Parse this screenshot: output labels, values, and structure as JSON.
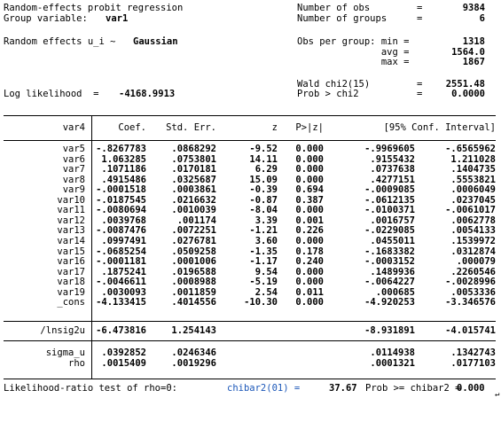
{
  "header": {
    "model_title": "Random-effects probit regression",
    "group_var_label": "Group variable:",
    "group_var": "var1",
    "re_label": "Random effects u_i ~",
    "re_dist": "Gaussian",
    "ll_label": "Log likelihood  =",
    "ll_value": "-4168.9913",
    "right": [
      {
        "label": "Number of obs",
        "eq": "=",
        "value": "9384",
        "bold": true
      },
      {
        "label": "Number of groups",
        "eq": "=",
        "value": "6",
        "bold": true
      },
      {
        "label": "",
        "eq": "",
        "value": "",
        "bold": false
      },
      {
        "label": "Obs per group: min =",
        "eq": "",
        "value": "1318",
        "bold": true
      },
      {
        "label": "               avg =",
        "eq": "",
        "value": "1564.0",
        "bold": true
      },
      {
        "label": "               max =",
        "eq": "",
        "value": "1867",
        "bold": true
      },
      {
        "label": "",
        "eq": "",
        "value": "",
        "bold": false
      },
      {
        "label": "Wald chi2(15)",
        "eq": "=",
        "value": "2551.48",
        "bold": true
      },
      {
        "label": "Prob > chi2",
        "eq": "=",
        "value": "0.0000",
        "bold": true
      }
    ]
  },
  "table": {
    "columns": [
      "var4",
      "Coef.",
      "Std. Err.",
      "z",
      "P>|z|",
      "[95% Conf. Interval]"
    ],
    "rows": [
      {
        "name": "var5",
        "coef": "-.8267783",
        "se": ".0868292",
        "z": "-9.52",
        "p": "0.000",
        "lo": "-.9969605",
        "hi": "-.6565962"
      },
      {
        "name": "var6",
        "coef": "1.063285",
        "se": ".0753801",
        "z": "14.11",
        "p": "0.000",
        "lo": ".9155432",
        "hi": "1.211028"
      },
      {
        "name": "var7",
        "coef": ".1071186",
        "se": ".0170181",
        "z": "6.29",
        "p": "0.000",
        "lo": ".0737638",
        "hi": ".1404735"
      },
      {
        "name": "var8",
        "coef": ".4915486",
        "se": ".0325687",
        "z": "15.09",
        "p": "0.000",
        "lo": ".4277151",
        "hi": ".5553821"
      },
      {
        "name": "var9",
        "coef": "-.0001518",
        "se": ".0003861",
        "z": "-0.39",
        "p": "0.694",
        "lo": "-.0009085",
        "hi": ".0006049"
      },
      {
        "name": "var10",
        "coef": "-.0187545",
        "se": ".0216632",
        "z": "-0.87",
        "p": "0.387",
        "lo": "-.0612135",
        "hi": ".0237045"
      },
      {
        "name": "var11",
        "coef": "-.0080694",
        "se": ".0010039",
        "z": "-8.04",
        "p": "0.000",
        "lo": "-.0100371",
        "hi": "-.0061017"
      },
      {
        "name": "var12",
        "coef": ".0039768",
        "se": ".001174",
        "z": "3.39",
        "p": "0.001",
        "lo": ".0016757",
        "hi": ".0062778"
      },
      {
        "name": "var13",
        "coef": "-.0087476",
        "se": ".0072251",
        "z": "-1.21",
        "p": "0.226",
        "lo": "-.0229085",
        "hi": ".0054133"
      },
      {
        "name": "var14",
        "coef": ".0997491",
        "se": ".0276781",
        "z": "3.60",
        "p": "0.000",
        "lo": ".0455011",
        "hi": ".1539972"
      },
      {
        "name": "var15",
        "coef": "-.0685254",
        "se": ".0509258",
        "z": "-1.35",
        "p": "0.178",
        "lo": "-.1683382",
        "hi": ".0312874"
      },
      {
        "name": "var16",
        "coef": "-.0001181",
        "se": ".0001006",
        "z": "-1.17",
        "p": "0.240",
        "lo": "-.0003152",
        "hi": ".000079"
      },
      {
        "name": "var17",
        "coef": ".1875241",
        "se": ".0196588",
        "z": "9.54",
        "p": "0.000",
        "lo": ".1489936",
        "hi": ".2260546"
      },
      {
        "name": "var18",
        "coef": "-.0046611",
        "se": ".0008988",
        "z": "-5.19",
        "p": "0.000",
        "lo": "-.0064227",
        "hi": "-.0028996"
      },
      {
        "name": "var19",
        "coef": ".0030093",
        "se": ".0011859",
        "z": "2.54",
        "p": "0.011",
        "lo": ".000685",
        "hi": ".0053336"
      },
      {
        "name": "_cons",
        "coef": "-4.133415",
        "se": ".4014556",
        "z": "-10.30",
        "p": "0.000",
        "lo": "-4.920253",
        "hi": "-3.346576"
      }
    ],
    "lnsig2u": {
      "name": "/lnsig2u",
      "coef": "-6.473816",
      "se": "1.254143",
      "lo": "-8.931891",
      "hi": "-4.015741"
    },
    "aux": [
      {
        "name": "sigma_u",
        "coef": ".0392852",
        "se": ".0246346",
        "lo": ".0114938",
        "hi": ".1342743"
      },
      {
        "name": "rho",
        "coef": ".0015409",
        "se": ".0019296",
        "lo": ".0001321",
        "hi": ".0177103"
      }
    ]
  },
  "footer": {
    "lr_label": "Likelihood-ratio test of rho=0:",
    "chibar_label": "chibar2(01) =",
    "chibar_value": "37.67",
    "prob_label": "Prob >= chibar2 =",
    "prob_value": "0.000"
  },
  "colors": {
    "highlight": "#1a56b8"
  }
}
